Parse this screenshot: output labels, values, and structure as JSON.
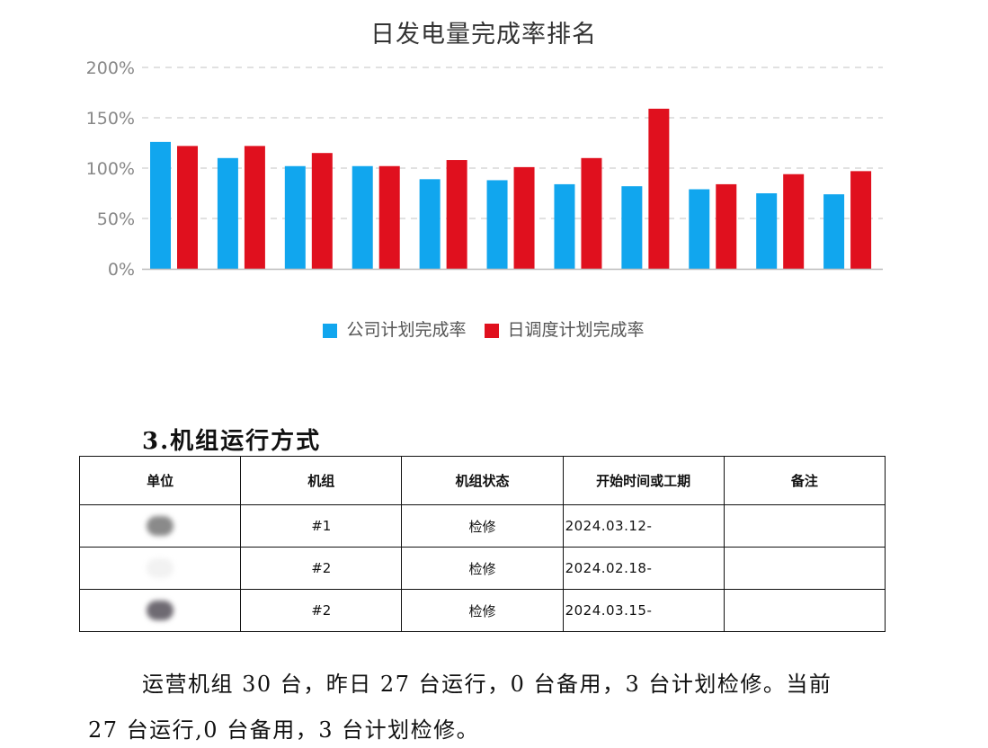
{
  "chart_data": {
    "type": "bar",
    "title": "日发电量完成率排名",
    "categories": [
      "",
      "",
      "",
      "",
      "",
      "",
      "",
      "",
      "",
      "",
      ""
    ],
    "series": [
      {
        "name": "公司计划完成率",
        "color": "#11a6ee",
        "values": [
          126,
          110,
          102,
          102,
          89,
          88,
          84,
          82,
          79,
          75,
          74
        ]
      },
      {
        "name": "日调度计划完成率",
        "color": "#e0101e",
        "values": [
          122,
          122,
          115,
          102,
          108,
          101,
          110,
          159,
          84,
          94,
          97
        ]
      }
    ],
    "y_ticks": [
      "0%",
      "50%",
      "100%",
      "150%",
      "200%"
    ],
    "ylim": [
      0,
      200
    ],
    "grid": true,
    "legend_position": "bottom"
  },
  "section": {
    "heading": "3.机组运行方式"
  },
  "table": {
    "headers": [
      "单位",
      "机组",
      "机组状态",
      "开始时间或工期",
      "备注"
    ],
    "rows": [
      {
        "unit": "",
        "unit_blur": "#8a8a8a",
        "set": "#1",
        "status": "检修",
        "start": "2024.03.12-",
        "note": ""
      },
      {
        "unit": "",
        "unit_blur": "#f2f2f2",
        "set": "#2",
        "status": "检修",
        "start": "2024.02.18-",
        "note": ""
      },
      {
        "unit": "",
        "unit_blur": "#6e6a72",
        "set": "#2",
        "status": "检修",
        "start": "2024.03.15-",
        "note": ""
      }
    ]
  },
  "paragraph": {
    "line1": "运营机组 30 台，昨日 27 台运行，0 台备用，3 台计划检修。当前",
    "line2": "27 台运行,0 台备用，3 台计划检修。"
  }
}
